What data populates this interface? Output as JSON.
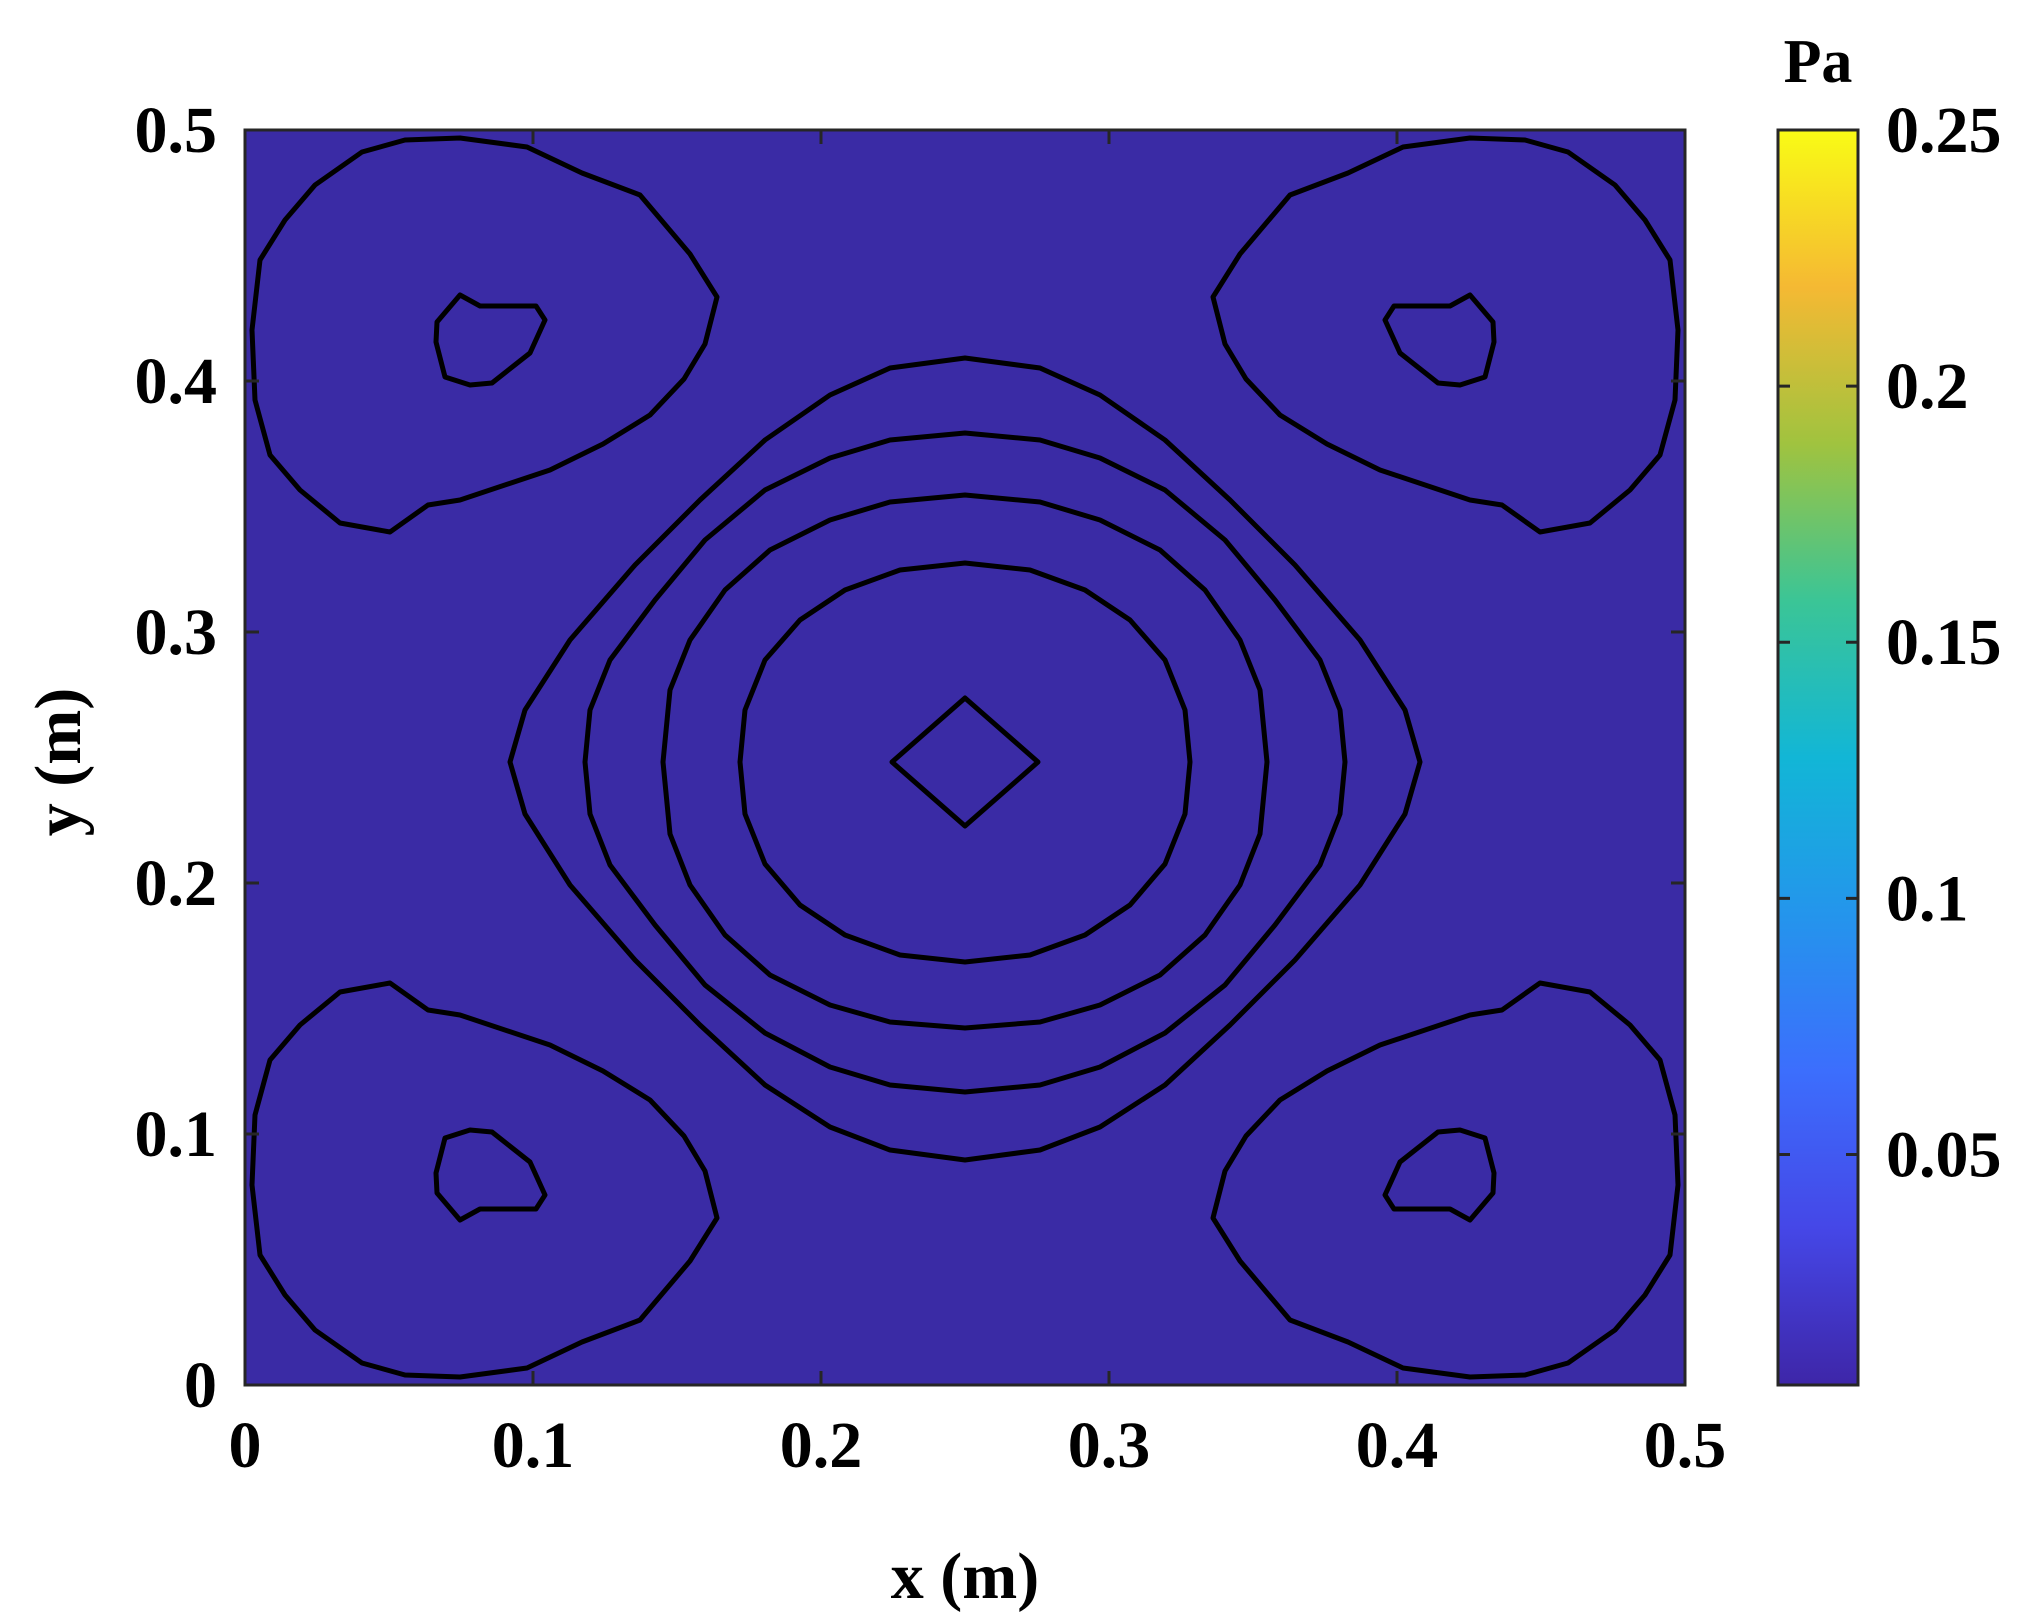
{
  "chart_data": {
    "type": "contour",
    "title": "",
    "xlabel": "x (m)",
    "ylabel": "y (m)",
    "xlim": [
      0,
      0.5
    ],
    "ylim": [
      0,
      0.5
    ],
    "xticks": [
      0,
      0.1,
      0.2,
      0.3,
      0.4,
      0.5
    ],
    "yticks": [
      0,
      0.1,
      0.2,
      0.3,
      0.4,
      0.5
    ],
    "xtick_labels": [
      "0",
      "0.1",
      "0.2",
      "0.3",
      "0.4",
      "0.5"
    ],
    "ytick_labels": [
      "0",
      "0.1",
      "0.2",
      "0.3",
      "0.4",
      "0.5"
    ],
    "grid": false,
    "field_description": "pressure amplitude with a central peak at (0.25, 0.25) and four secondary peaks near (0.075, 0.075), (0.425, 0.075), (0.075, 0.425), (0.425, 0.425)",
    "central_peak": {
      "x": 0.25,
      "y": 0.25
    },
    "corner_peaks": [
      {
        "x": 0.075,
        "y": 0.075
      },
      {
        "x": 0.425,
        "y": 0.075
      },
      {
        "x": 0.075,
        "y": 0.425
      },
      {
        "x": 0.425,
        "y": 0.425
      }
    ],
    "contour_levels": [
      0.05,
      0.1,
      0.15,
      0.2,
      0.25
    ],
    "fill_colors": [
      "#3a2ba5",
      "#445ef6",
      "#1fa7dd",
      "#43c989",
      "#e8b935",
      "#f9fb15"
    ],
    "colorbar": {
      "label": "Pa",
      "min": 0.005,
      "max": 0.25,
      "ticks": [
        0.05,
        0.1,
        0.15,
        0.2,
        0.25
      ],
      "tick_labels": [
        "0.05",
        "0.1",
        "0.15",
        "0.2",
        "0.25"
      ],
      "colormap": "parula"
    }
  }
}
